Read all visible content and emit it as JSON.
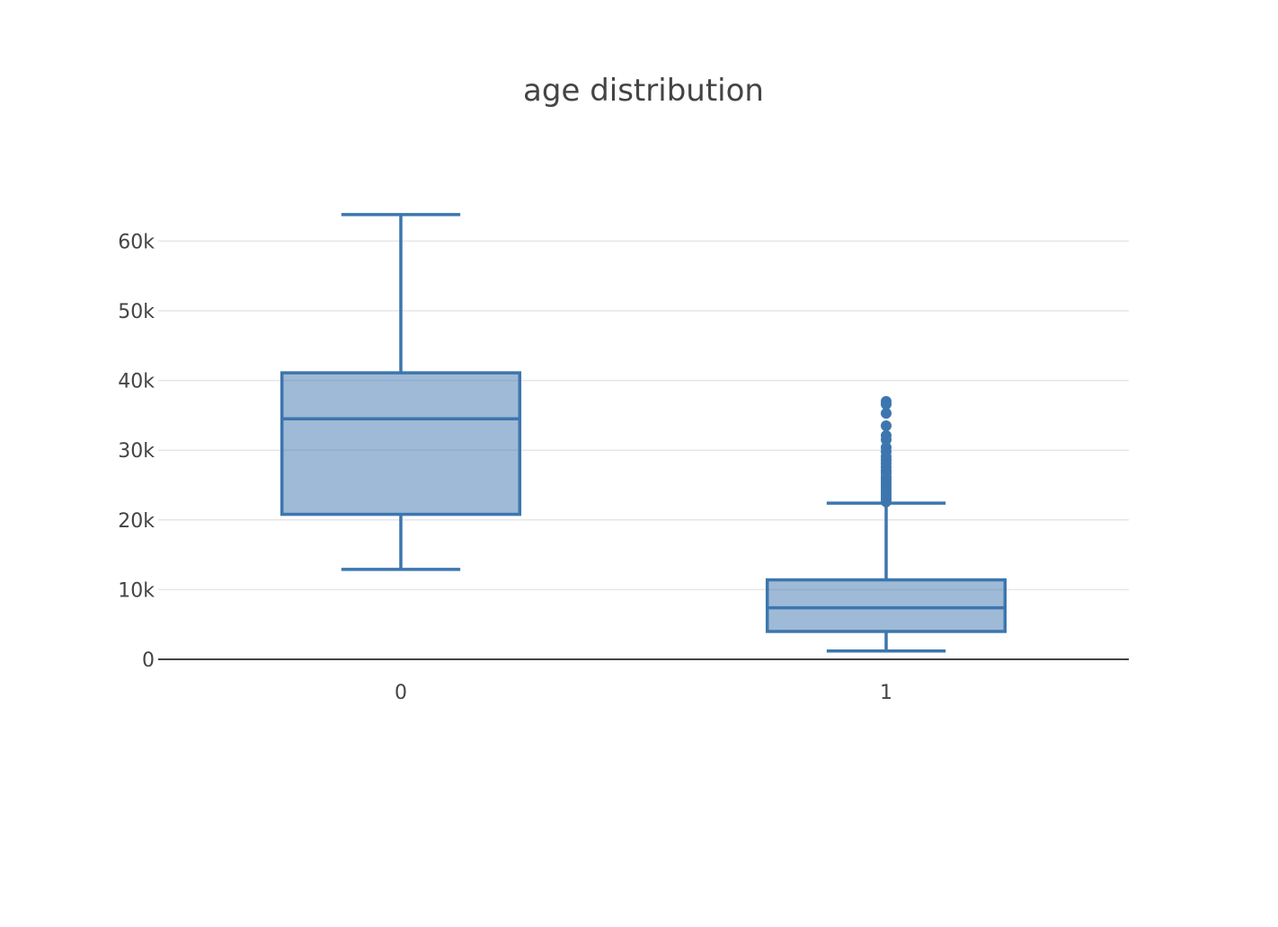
{
  "chart_data": {
    "type": "box",
    "title": "age distribution",
    "xlabel": "",
    "ylabel": "",
    "categories": [
      "0",
      "1"
    ],
    "ylim": [
      0,
      68000
    ],
    "y_ticks": [
      0,
      10000,
      20000,
      30000,
      40000,
      50000,
      60000
    ],
    "y_tick_labels": [
      "0",
      "10k",
      "20k",
      "30k",
      "40k",
      "50k",
      "60k"
    ],
    "grid": true,
    "legend": false,
    "color": "#3d76ae",
    "fill_color": "rgba(61,118,174,0.5)",
    "boxes": [
      {
        "category": "0",
        "lower_fence": 12900,
        "q1": 20800,
        "median": 34500,
        "q3": 41100,
        "upper_fence": 63800,
        "outliers": []
      },
      {
        "category": "1",
        "lower_fence": 1200,
        "q1": 4000,
        "median": 7400,
        "q3": 11400,
        "upper_fence": 22400,
        "outliers": [
          22600,
          23000,
          23400,
          23800,
          24200,
          24600,
          25000,
          25400,
          25800,
          26200,
          26700,
          27100,
          27600,
          28100,
          28600,
          29100,
          29800,
          30400,
          31500,
          32100,
          33500,
          35300,
          36600,
          37000
        ]
      }
    ]
  }
}
